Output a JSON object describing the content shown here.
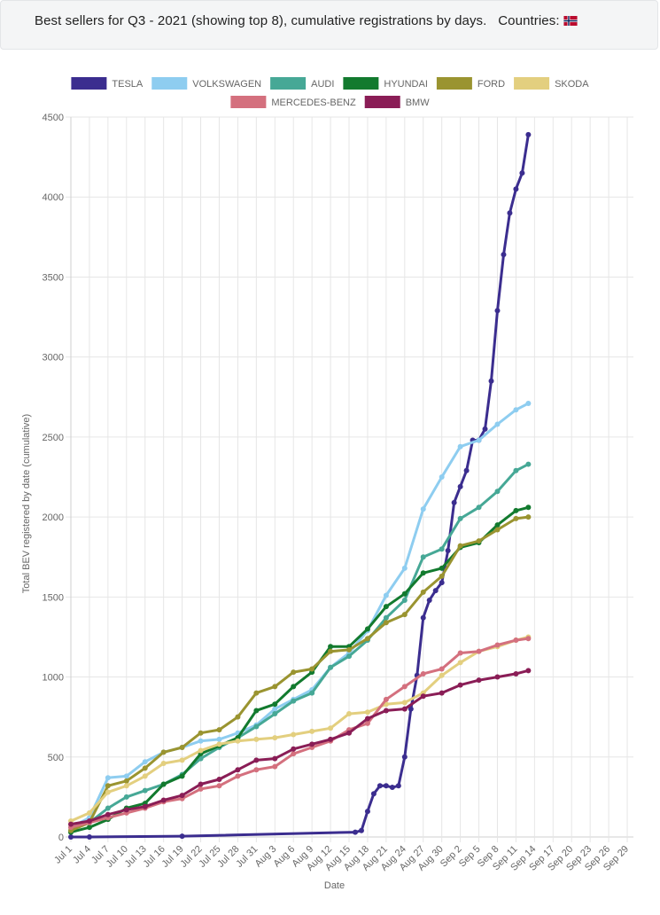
{
  "header": {
    "title": "Best sellers for Q3 - 2021 (showing top 8), cumulative registrations by days.",
    "countries_label": "Countries:",
    "flag_icon": "norway-flag-icon"
  },
  "chart_data": {
    "type": "line",
    "xlabel": "Date",
    "ylabel": "Total BEV registered by date (cumulative)",
    "ylim": [
      0,
      4500
    ],
    "yticks": [
      0,
      500,
      1000,
      1500,
      2000,
      2500,
      3000,
      3500,
      4000,
      4500
    ],
    "xticks": [
      "Jul 1",
      "Jul 4",
      "Jul 7",
      "Jul 10",
      "Jul 13",
      "Jul 16",
      "Jul 19",
      "Jul 22",
      "Jul 25",
      "Jul 28",
      "Jul 31",
      "Aug 3",
      "Aug 6",
      "Aug 9",
      "Aug 12",
      "Aug 15",
      "Aug 18",
      "Aug 21",
      "Aug 24",
      "Aug 27",
      "Aug 30",
      "Sep 2",
      "Sep 5",
      "Sep 8",
      "Sep 11",
      "Sep 14",
      "Sep 17",
      "Sep 20",
      "Sep 23",
      "Sep 26",
      "Sep 29"
    ],
    "x_range": [
      "Jul 1",
      "Sep 30"
    ],
    "grid": true,
    "legend_position": "top",
    "series": [
      {
        "name": "TESLA",
        "color": "#3b2d8f",
        "x": [
          "Jul 1",
          "Jul 4",
          "Jul 19",
          "Aug 16",
          "Aug 17",
          "Aug 18",
          "Aug 19",
          "Aug 20",
          "Aug 21",
          "Aug 22",
          "Aug 23",
          "Aug 24",
          "Aug 25",
          "Aug 26",
          "Aug 27",
          "Aug 28",
          "Aug 29",
          "Aug 30",
          "Aug 31",
          "Sep 1",
          "Sep 2",
          "Sep 3",
          "Sep 4",
          "Sep 5",
          "Sep 6",
          "Sep 7",
          "Sep 8",
          "Sep 9",
          "Sep 10",
          "Sep 11",
          "Sep 12",
          "Sep 13"
        ],
        "values": [
          0,
          0,
          5,
          30,
          40,
          160,
          270,
          320,
          320,
          310,
          320,
          500,
          800,
          1010,
          1370,
          1480,
          1540,
          1590,
          1790,
          2090,
          2190,
          2290,
          2480,
          2480,
          2550,
          2850,
          3290,
          3640,
          3900,
          4050,
          4150,
          4390
        ]
      },
      {
        "name": "VOLKSWAGEN",
        "color": "#8ecdf0",
        "x": [
          "Jul 1",
          "Jul 4",
          "Jul 7",
          "Jul 10",
          "Jul 13",
          "Jul 16",
          "Jul 19",
          "Jul 22",
          "Jul 25",
          "Jul 28",
          "Jul 31",
          "Aug 3",
          "Aug 6",
          "Aug 9",
          "Aug 12",
          "Aug 15",
          "Aug 18",
          "Aug 21",
          "Aug 24",
          "Aug 27",
          "Aug 30",
          "Sep 2",
          "Sep 5",
          "Sep 8",
          "Sep 11",
          "Sep 13"
        ],
        "values": [
          60,
          120,
          370,
          380,
          470,
          530,
          560,
          600,
          610,
          650,
          700,
          800,
          860,
          920,
          1060,
          1150,
          1290,
          1510,
          1680,
          2050,
          2250,
          2440,
          2480,
          2580,
          2670,
          2710
        ]
      },
      {
        "name": "AUDI",
        "color": "#46a896",
        "x": [
          "Jul 1",
          "Jul 4",
          "Jul 7",
          "Jul 10",
          "Jul 13",
          "Jul 16",
          "Jul 19",
          "Jul 22",
          "Jul 25",
          "Jul 28",
          "Jul 31",
          "Aug 3",
          "Aug 6",
          "Aug 9",
          "Aug 12",
          "Aug 15",
          "Aug 18",
          "Aug 21",
          "Aug 24",
          "Aug 27",
          "Aug 30",
          "Sep 2",
          "Sep 5",
          "Sep 8",
          "Sep 11",
          "Sep 13"
        ],
        "values": [
          40,
          90,
          180,
          250,
          290,
          330,
          390,
          490,
          560,
          620,
          690,
          770,
          850,
          900,
          1060,
          1130,
          1230,
          1370,
          1480,
          1750,
          1800,
          1990,
          2060,
          2160,
          2290,
          2330
        ]
      },
      {
        "name": "HYUNDAI",
        "color": "#127a2e",
        "x": [
          "Jul 1",
          "Jul 4",
          "Jul 7",
          "Jul 10",
          "Jul 13",
          "Jul 16",
          "Jul 19",
          "Jul 22",
          "Jul 25",
          "Jul 28",
          "Jul 31",
          "Aug 3",
          "Aug 6",
          "Aug 9",
          "Aug 12",
          "Aug 15",
          "Aug 18",
          "Aug 21",
          "Aug 24",
          "Aug 27",
          "Aug 30",
          "Sep 2",
          "Sep 5",
          "Sep 8",
          "Sep 11",
          "Sep 13"
        ],
        "values": [
          30,
          60,
          110,
          180,
          210,
          330,
          380,
          520,
          570,
          620,
          790,
          830,
          940,
          1030,
          1190,
          1190,
          1300,
          1440,
          1520,
          1650,
          1680,
          1810,
          1840,
          1950,
          2040,
          2060
        ]
      },
      {
        "name": "FORD",
        "color": "#9a9430",
        "x": [
          "Jul 1",
          "Jul 4",
          "Jul 7",
          "Jul 10",
          "Jul 13",
          "Jul 16",
          "Jul 19",
          "Jul 22",
          "Jul 25",
          "Jul 28",
          "Jul 31",
          "Aug 3",
          "Aug 6",
          "Aug 9",
          "Aug 12",
          "Aug 15",
          "Aug 18",
          "Aug 21",
          "Aug 24",
          "Aug 27",
          "Aug 30",
          "Sep 2",
          "Sep 5",
          "Sep 8",
          "Sep 11",
          "Sep 13"
        ],
        "values": [
          40,
          90,
          320,
          350,
          430,
          530,
          560,
          650,
          670,
          750,
          900,
          940,
          1030,
          1050,
          1160,
          1170,
          1240,
          1340,
          1390,
          1530,
          1630,
          1820,
          1850,
          1920,
          1990,
          2000
        ]
      },
      {
        "name": "SKODA",
        "color": "#e3cf7f",
        "x": [
          "Jul 1",
          "Jul 4",
          "Jul 7",
          "Jul 10",
          "Jul 13",
          "Jul 16",
          "Jul 19",
          "Jul 22",
          "Jul 25",
          "Jul 28",
          "Jul 31",
          "Aug 3",
          "Aug 6",
          "Aug 9",
          "Aug 12",
          "Aug 15",
          "Aug 18",
          "Aug 21",
          "Aug 24",
          "Aug 27",
          "Aug 30",
          "Sep 2",
          "Sep 5",
          "Sep 8",
          "Sep 11",
          "Sep 13"
        ],
        "values": [
          100,
          150,
          280,
          320,
          380,
          460,
          480,
          540,
          580,
          600,
          610,
          620,
          640,
          660,
          680,
          770,
          780,
          830,
          840,
          900,
          1010,
          1090,
          1160,
          1190,
          1230,
          1250
        ]
      },
      {
        "name": "MERCEDES-BENZ",
        "color": "#d4707e",
        "x": [
          "Jul 1",
          "Jul 4",
          "Jul 7",
          "Jul 10",
          "Jul 13",
          "Jul 16",
          "Jul 19",
          "Jul 22",
          "Jul 25",
          "Jul 28",
          "Jul 31",
          "Aug 3",
          "Aug 6",
          "Aug 9",
          "Aug 12",
          "Aug 15",
          "Aug 18",
          "Aug 21",
          "Aug 24",
          "Aug 27",
          "Aug 30",
          "Sep 2",
          "Sep 5",
          "Sep 8",
          "Sep 11",
          "Sep 13"
        ],
        "values": [
          60,
          90,
          120,
          150,
          180,
          220,
          240,
          300,
          320,
          380,
          420,
          440,
          520,
          560,
          600,
          670,
          710,
          860,
          940,
          1020,
          1050,
          1150,
          1160,
          1200,
          1230,
          1240
        ]
      },
      {
        "name": "BMW",
        "color": "#8a1d56",
        "x": [
          "Jul 1",
          "Jul 4",
          "Jul 7",
          "Jul 10",
          "Jul 13",
          "Jul 16",
          "Jul 19",
          "Jul 22",
          "Jul 25",
          "Jul 28",
          "Jul 31",
          "Aug 3",
          "Aug 6",
          "Aug 9",
          "Aug 12",
          "Aug 15",
          "Aug 18",
          "Aug 21",
          "Aug 24",
          "Aug 27",
          "Aug 30",
          "Sep 2",
          "Sep 5",
          "Sep 8",
          "Sep 11",
          "Sep 13"
        ],
        "values": [
          80,
          100,
          140,
          170,
          190,
          230,
          260,
          330,
          360,
          420,
          480,
          490,
          550,
          580,
          610,
          650,
          740,
          790,
          800,
          880,
          900,
          950,
          980,
          1000,
          1020,
          1040
        ]
      }
    ]
  }
}
